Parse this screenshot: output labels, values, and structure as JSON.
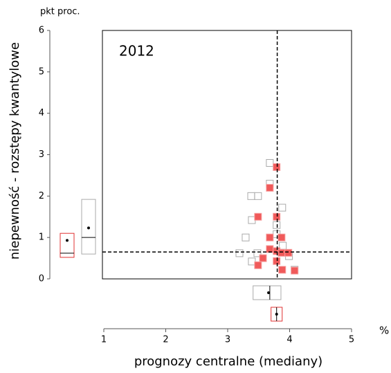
{
  "chart_data": {
    "type": "scatter",
    "annotation": "2012",
    "y_unit": "pkt proc.",
    "x_unit": "%",
    "ylabel": "niepewność - rozstępy kwantylowe",
    "xlabel": "prognozy centralne (mediany)",
    "xlim": [
      1,
      5
    ],
    "xticks": [
      1,
      2,
      3,
      4,
      5
    ],
    "ylim": [
      0,
      6
    ],
    "yticks": [
      0,
      1,
      2,
      3,
      4,
      5,
      6
    ],
    "vline": 3.8,
    "hline": 0.65,
    "series": [
      {
        "color": "#aaaaaa",
        "filled": false,
        "x": [
          3.68,
          3.68,
          3.38,
          3.49,
          3.88,
          3.39,
          3.79,
          3.79,
          3.29,
          3.19,
          3.48,
          3.39,
          3.89,
          3.99,
          4.08
        ],
        "y": [
          2.8,
          2.3,
          2.0,
          2.0,
          1.72,
          1.42,
          1.3,
          1.08,
          1.0,
          0.62,
          0.62,
          0.42,
          0.8,
          0.55,
          0.22
        ]
      },
      {
        "color": "#f05a5a",
        "filled": true,
        "x": [
          3.79,
          3.68,
          3.49,
          3.79,
          3.68,
          3.87,
          3.68,
          3.57,
          3.79,
          3.87,
          3.98,
          3.49,
          3.79,
          3.88,
          4.08
        ],
        "y": [
          2.7,
          2.2,
          1.5,
          1.5,
          1.0,
          1.0,
          0.72,
          0.5,
          0.67,
          0.63,
          0.63,
          0.33,
          0.43,
          0.22,
          0.2
        ]
      }
    ],
    "y_boxes": [
      {
        "color": "#e03030",
        "q1": 0.52,
        "median": 0.62,
        "q3": 1.1,
        "mean": 0.93
      },
      {
        "color": "#aaaaaa",
        "q1": 0.6,
        "median": 1.0,
        "q3": 1.92,
        "mean": 1.23
      }
    ],
    "x_boxes": [
      {
        "color": "#aaaaaa",
        "q1": 3.41,
        "median": 3.68,
        "q3": 3.86,
        "mean": 3.66
      },
      {
        "color": "#e03030",
        "q1": 3.7,
        "median": 3.79,
        "q3": 3.88,
        "mean": 3.79
      }
    ]
  }
}
